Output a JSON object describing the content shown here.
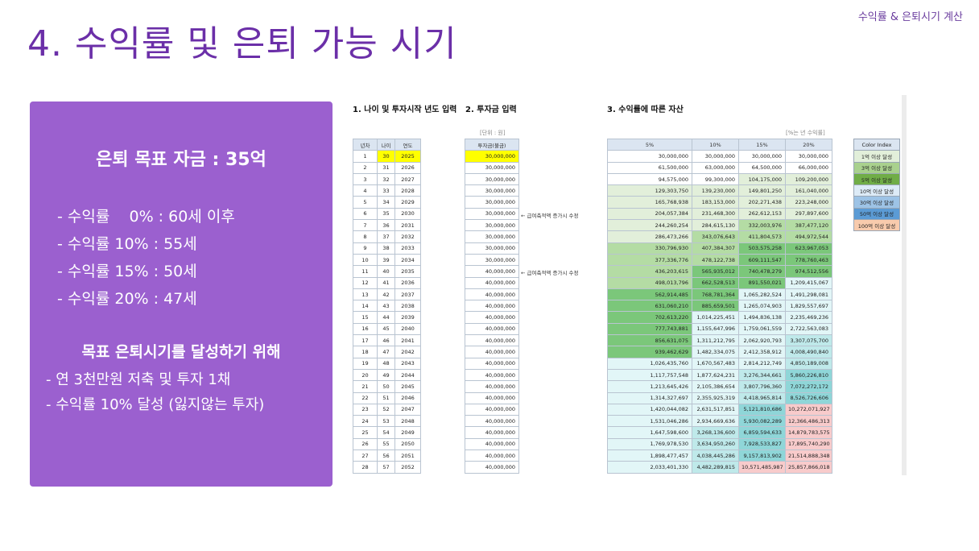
{
  "header": {
    "top_label": "수익률 & 은퇴시기 계산",
    "title": "4. 수익률 및 은퇴 가능 시기"
  },
  "summary": {
    "goal": "은퇴 목표 자금 : 35억",
    "rates": [
      "- 수익률    0% : 60세 이후",
      "- 수익률 10% : 55세",
      "- 수익률 15% : 50세",
      "- 수익률 20% : 47세"
    ],
    "strategy_title": "목표 은퇴시기를 달성하기 위해",
    "strategies": [
      "- 연 3천만원 저축 및 투자 1채",
      "- 수익률 10% 달성 (잃지않는 투자)"
    ]
  },
  "sheet": {
    "section1_title": "1. 나이 및 투자시작 년도 입력",
    "section2_title": "2. 투자금 입력",
    "section3_title": "3. 수익률에 따른 자산",
    "unit_note": "[단위 : 원]",
    "rate_note": "[%는 년 수익률]",
    "note1": "← 급여축적액 증가시 수정",
    "note2": "← 급여축적액 증가시 수정",
    "table1_headers": [
      "년차",
      "나이",
      "연도"
    ],
    "table1_rows": [
      [
        "1",
        "30",
        "2025"
      ],
      [
        "2",
        "31",
        "2026"
      ],
      [
        "3",
        "32",
        "2027"
      ],
      [
        "4",
        "33",
        "2028"
      ],
      [
        "5",
        "34",
        "2029"
      ],
      [
        "6",
        "35",
        "2030"
      ],
      [
        "7",
        "36",
        "2031"
      ],
      [
        "8",
        "37",
        "2032"
      ],
      [
        "9",
        "38",
        "2033"
      ],
      [
        "10",
        "39",
        "2034"
      ],
      [
        "11",
        "40",
        "2035"
      ],
      [
        "12",
        "41",
        "2036"
      ],
      [
        "13",
        "42",
        "2037"
      ],
      [
        "14",
        "43",
        "2038"
      ],
      [
        "15",
        "44",
        "2039"
      ],
      [
        "16",
        "45",
        "2040"
      ],
      [
        "17",
        "46",
        "2041"
      ],
      [
        "18",
        "47",
        "2042"
      ],
      [
        "19",
        "48",
        "2043"
      ],
      [
        "20",
        "49",
        "2044"
      ],
      [
        "21",
        "50",
        "2045"
      ],
      [
        "22",
        "51",
        "2046"
      ],
      [
        "23",
        "52",
        "2047"
      ],
      [
        "24",
        "53",
        "2048"
      ],
      [
        "25",
        "54",
        "2049"
      ],
      [
        "26",
        "55",
        "2050"
      ],
      [
        "27",
        "56",
        "2051"
      ],
      [
        "28",
        "57",
        "2052"
      ]
    ],
    "table2_header": "투자금(불금)",
    "table2_values": [
      "30,000,000",
      "30,000,000",
      "30,000,000",
      "30,000,000",
      "30,000,000",
      "30,000,000",
      "30,000,000",
      "30,000,000",
      "30,000,000",
      "30,000,000",
      "40,000,000",
      "40,000,000",
      "40,000,000",
      "40,000,000",
      "40,000,000",
      "40,000,000",
      "40,000,000",
      "40,000,000",
      "40,000,000",
      "40,000,000",
      "40,000,000",
      "40,000,000",
      "40,000,000",
      "40,000,000",
      "40,000,000",
      "40,000,000",
      "40,000,000",
      "40,000,000"
    ],
    "table3_headers": [
      "5%",
      "10%",
      "15%",
      "20%"
    ],
    "table3_rows": [
      [
        [
          "30,000,000",
          "w"
        ],
        [
          "30,000,000",
          "w"
        ],
        [
          "30,000,000",
          "w"
        ],
        [
          "30,000,000",
          "w"
        ]
      ],
      [
        [
          "61,500,000",
          "w"
        ],
        [
          "63,000,000",
          "w"
        ],
        [
          "64,500,000",
          "w"
        ],
        [
          "66,000,000",
          "w"
        ]
      ],
      [
        [
          "94,575,000",
          "w"
        ],
        [
          "99,300,000",
          "w"
        ],
        [
          "104,175,000",
          "l1"
        ],
        [
          "109,200,000",
          "l1"
        ]
      ],
      [
        [
          "129,303,750",
          "l1"
        ],
        [
          "139,230,000",
          "l1"
        ],
        [
          "149,801,250",
          "l1"
        ],
        [
          "161,040,000",
          "l1"
        ]
      ],
      [
        [
          "165,768,938",
          "l1"
        ],
        [
          "183,153,000",
          "l1"
        ],
        [
          "202,271,438",
          "l1"
        ],
        [
          "223,248,000",
          "l1"
        ]
      ],
      [
        [
          "204,057,384",
          "l1"
        ],
        [
          "231,468,300",
          "l1"
        ],
        [
          "262,612,153",
          "l1"
        ],
        [
          "297,897,600",
          "l1"
        ]
      ],
      [
        [
          "244,260,254",
          "l1"
        ],
        [
          "284,615,130",
          "l1"
        ],
        [
          "332,003,976",
          "l2"
        ],
        [
          "387,477,120",
          "l2"
        ]
      ],
      [
        [
          "286,473,266",
          "l1"
        ],
        [
          "343,076,643",
          "l2"
        ],
        [
          "411,804,573",
          "l2"
        ],
        [
          "494,972,544",
          "l2"
        ]
      ],
      [
        [
          "330,796,930",
          "l2"
        ],
        [
          "407,384,307",
          "l2"
        ],
        [
          "503,575,258",
          "l3"
        ],
        [
          "623,967,053",
          "l3"
        ]
      ],
      [
        [
          "377,336,776",
          "l2"
        ],
        [
          "478,122,738",
          "l2"
        ],
        [
          "609,111,547",
          "l3"
        ],
        [
          "778,760,463",
          "l3"
        ]
      ],
      [
        [
          "436,203,615",
          "l2"
        ],
        [
          "565,935,012",
          "l3"
        ],
        [
          "740,478,279",
          "l3"
        ],
        [
          "974,512,556",
          "l3"
        ]
      ],
      [
        [
          "498,013,796",
          "l2"
        ],
        [
          "662,528,513",
          "l3"
        ],
        [
          "891,550,021",
          "l3"
        ],
        [
          "1,209,415,067",
          "t1"
        ]
      ],
      [
        [
          "562,914,485",
          "l3"
        ],
        [
          "768,781,364",
          "l3"
        ],
        [
          "1,065,282,524",
          "t1"
        ],
        [
          "1,491,298,081",
          "t1"
        ]
      ],
      [
        [
          "631,060,210",
          "l3"
        ],
        [
          "885,659,501",
          "l3"
        ],
        [
          "1,265,074,903",
          "t1"
        ],
        [
          "1,829,557,697",
          "t1"
        ]
      ],
      [
        [
          "702,613,220",
          "l3"
        ],
        [
          "1,014,225,451",
          "t1"
        ],
        [
          "1,494,836,138",
          "t1"
        ],
        [
          "2,235,469,236",
          "t1"
        ]
      ],
      [
        [
          "777,743,881",
          "l3"
        ],
        [
          "1,155,647,996",
          "t1"
        ],
        [
          "1,759,061,559",
          "t1"
        ],
        [
          "2,722,563,083",
          "t1"
        ]
      ],
      [
        [
          "856,631,075",
          "l3"
        ],
        [
          "1,311,212,795",
          "t1"
        ],
        [
          "2,062,920,793",
          "t1"
        ],
        [
          "3,307,075,700",
          "t2"
        ]
      ],
      [
        [
          "939,462,629",
          "l3"
        ],
        [
          "1,482,334,075",
          "t1"
        ],
        [
          "2,412,358,912",
          "t1"
        ],
        [
          "4,008,490,840",
          "t2"
        ]
      ],
      [
        [
          "1,026,435,760",
          "t1"
        ],
        [
          "1,670,567,483",
          "t1"
        ],
        [
          "2,814,212,749",
          "t1"
        ],
        [
          "4,850,189,008",
          "t2"
        ]
      ],
      [
        [
          "1,117,757,548",
          "t1"
        ],
        [
          "1,877,624,231",
          "t1"
        ],
        [
          "3,276,344,661",
          "t2"
        ],
        [
          "5,860,226,810",
          "t3"
        ]
      ],
      [
        [
          "1,213,645,426",
          "t1"
        ],
        [
          "2,105,386,654",
          "t1"
        ],
        [
          "3,807,796,360",
          "t2"
        ],
        [
          "7,072,272,172",
          "t3"
        ]
      ],
      [
        [
          "1,314,327,697",
          "t1"
        ],
        [
          "2,355,925,319",
          "t1"
        ],
        [
          "4,418,965,814",
          "t2"
        ],
        [
          "8,526,726,606",
          "t3"
        ]
      ],
      [
        [
          "1,420,044,082",
          "t1"
        ],
        [
          "2,631,517,851",
          "t1"
        ],
        [
          "5,121,810,686",
          "t3"
        ],
        [
          "10,272,071,927",
          "p"
        ]
      ],
      [
        [
          "1,531,046,286",
          "t1"
        ],
        [
          "2,934,669,636",
          "t1"
        ],
        [
          "5,930,082,289",
          "t3"
        ],
        [
          "12,366,486,313",
          "p"
        ]
      ],
      [
        [
          "1,647,598,600",
          "t1"
        ],
        [
          "3,268,136,600",
          "t2"
        ],
        [
          "6,859,594,633",
          "t3"
        ],
        [
          "14,879,783,575",
          "p"
        ]
      ],
      [
        [
          "1,769,978,530",
          "t1"
        ],
        [
          "3,634,950,260",
          "t2"
        ],
        [
          "7,928,533,827",
          "t3"
        ],
        [
          "17,895,740,290",
          "p"
        ]
      ],
      [
        [
          "1,898,477,457",
          "t1"
        ],
        [
          "4,038,445,286",
          "t2"
        ],
        [
          "9,157,813,902",
          "t3"
        ],
        [
          "21,514,888,348",
          "p"
        ]
      ],
      [
        [
          "2,033,401,330",
          "t1"
        ],
        [
          "4,482,289,815",
          "t2"
        ],
        [
          "10,571,485,987",
          "p"
        ],
        [
          "25,857,866,018",
          "p"
        ]
      ]
    ],
    "legend_header": "Color Index",
    "legend": [
      {
        "label": "1억 이상 달성",
        "color": "#e2efda"
      },
      {
        "label": "3억 이상 달성",
        "color": "#a9d18e"
      },
      {
        "label": "5억 이상 달성",
        "color": "#70ad47"
      },
      {
        "label": "10억 이상 달성",
        "color": "#ddebf7"
      },
      {
        "label": "30억 이상 달성",
        "color": "#9dc3e6"
      },
      {
        "label": "50억 이상 달성",
        "color": "#5b9bd5"
      },
      {
        "label": "100억 이상 달성",
        "color": "#f8cbad"
      }
    ],
    "cell_colors": {
      "w": "#ffffff",
      "l1": "#e2efda",
      "l2": "#b4dca4",
      "l3": "#7bc77a",
      "t1": "#e2f6f7",
      "t2": "#bfe9ea",
      "t3": "#8fd6d8",
      "p": "#f8cbcb"
    }
  }
}
